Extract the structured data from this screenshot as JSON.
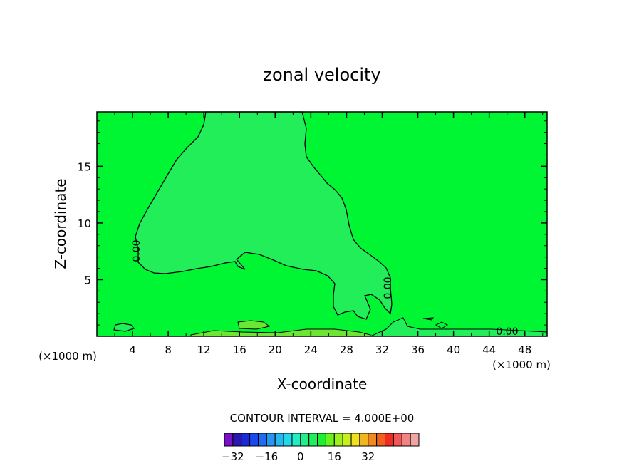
{
  "chart_data": {
    "type": "contour",
    "title": "zonal velocity",
    "xlabel": "X-coordinate",
    "ylabel": "Z-coordinate",
    "x_unit_left": "(×1000 m)",
    "x_unit_right": "(×1000 m)",
    "xlim": [
      0,
      50.5
    ],
    "ylim": [
      0,
      19.8
    ],
    "x_ticks": [
      4,
      8,
      12,
      16,
      20,
      24,
      28,
      32,
      36,
      40,
      44,
      48
    ],
    "y_ticks": [
      5,
      10,
      15
    ],
    "contour_label": "0.00",
    "contour_interval_text": "CONTOUR INTERVAL = 4.000E+00",
    "colorbar": {
      "tick_labels": [
        "−32",
        "−16",
        "0",
        "16",
        "32"
      ],
      "tick_values": [
        -32,
        -16,
        0,
        16,
        32
      ],
      "colors": [
        "#7a10c8",
        "#2a18b0",
        "#1a2ad8",
        "#1c48f0",
        "#1e6cf0",
        "#2496f0",
        "#24b8ee",
        "#22d8e8",
        "#22ecc4",
        "#22ee8c",
        "#20ee5c",
        "#1ef030",
        "#6cf020",
        "#9cf020",
        "#c8f020",
        "#f0e020",
        "#f0b820",
        "#f08a20",
        "#f06020",
        "#f02c20",
        "#f05858",
        "#f08484",
        "#f0a4a4"
      ],
      "min": -36,
      "max": 56
    },
    "regions": [
      {
        "name": "weak negative (-4 to 0)",
        "color": "#22ee5a"
      },
      {
        "name": "background (0 to 4)",
        "color": "#00f533"
      },
      {
        "name": "near-surface positive",
        "color": "#6ce632"
      }
    ]
  }
}
